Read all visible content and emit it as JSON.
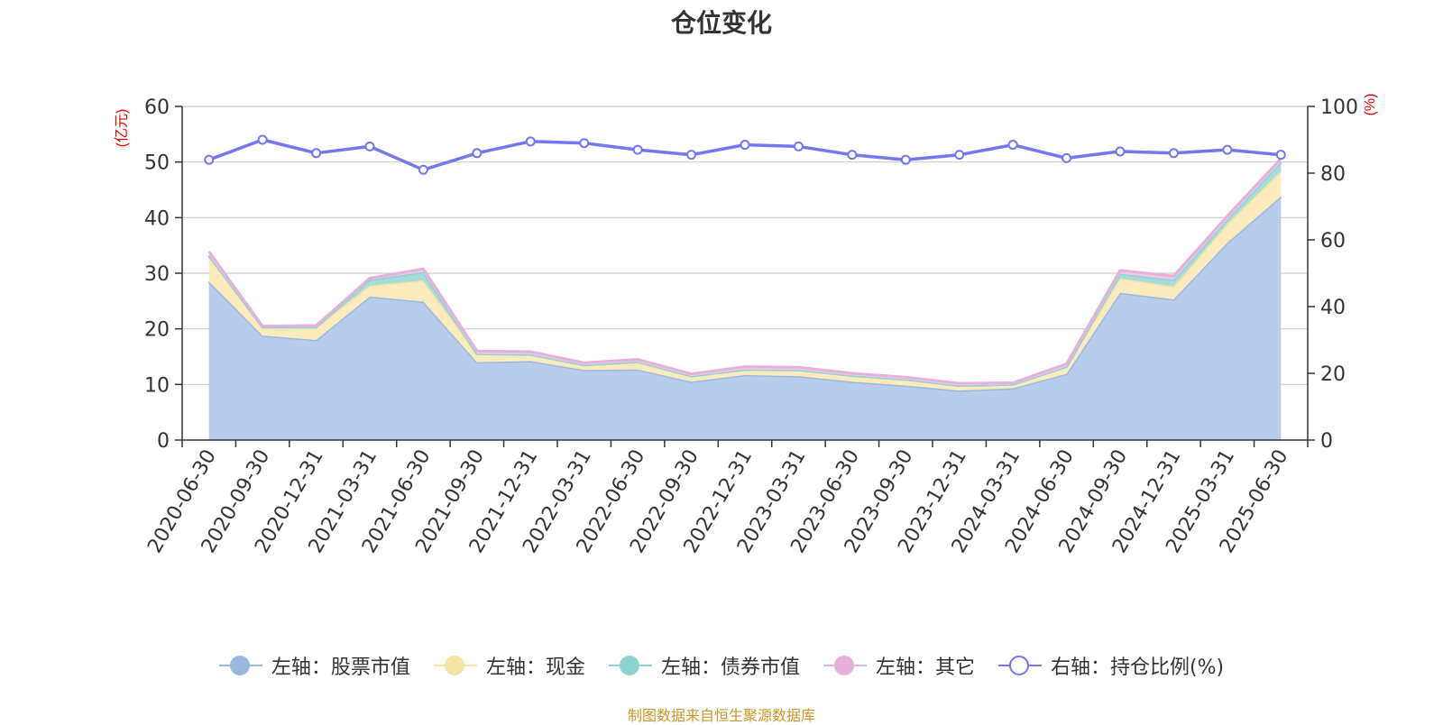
{
  "chart_data": {
    "type": "area",
    "title": "仓位变化",
    "left_axis_unit": "(亿元)",
    "right_axis_unit": "(%)",
    "x": [
      "2020-06-30",
      "2020-09-30",
      "2020-12-31",
      "2021-03-31",
      "2021-06-30",
      "2021-09-30",
      "2021-12-31",
      "2022-03-31",
      "2022-06-30",
      "2022-09-30",
      "2022-12-31",
      "2023-03-31",
      "2023-06-30",
      "2023-09-30",
      "2023-12-31",
      "2024-03-31",
      "2024-06-30",
      "2024-09-30",
      "2024-12-31",
      "2025-03-31",
      "2025-06-30"
    ],
    "left_ylim": [
      0,
      60
    ],
    "left_ticks": [
      "0",
      "10",
      "20",
      "30",
      "40",
      "50",
      "60"
    ],
    "right_ylim": [
      0,
      100
    ],
    "right_ticks": [
      "0",
      "20",
      "40",
      "60",
      "80",
      "100"
    ],
    "grid": true,
    "legend_position": "bottom",
    "series": [
      {
        "name": "左轴：股票市值",
        "axis": "left",
        "stacked": true,
        "color": "#9ab7e0",
        "fill": "#b8cdeb",
        "values": [
          28.5,
          18.8,
          18.0,
          25.8,
          24.9,
          14.0,
          14.2,
          12.6,
          12.7,
          10.5,
          11.7,
          11.5,
          10.5,
          9.8,
          8.9,
          9.3,
          11.9,
          26.5,
          25.3,
          35.5,
          43.8
        ]
      },
      {
        "name": "左轴：现金",
        "axis": "left",
        "stacked": true,
        "color": "#f6e3a6",
        "fill": "#fbebbd",
        "values": [
          4.5,
          1.5,
          2.3,
          2.0,
          3.8,
          1.5,
          1.2,
          0.9,
          1.2,
          1.0,
          1.0,
          1.1,
          1.1,
          1.1,
          0.9,
          0.7,
          1.3,
          2.6,
          2.3,
          3.4,
          4.6
        ]
      },
      {
        "name": "左轴：债券市值",
        "axis": "left",
        "stacked": true,
        "color": "#8fd3d1",
        "fill": "#a6dcdb",
        "values": [
          0.2,
          0.0,
          0.0,
          1.0,
          1.5,
          0.0,
          0.0,
          0.0,
          0.2,
          0.0,
          0.0,
          0.0,
          0.0,
          0.0,
          0.0,
          0.0,
          0.0,
          0.8,
          1.2,
          0.8,
          1.6
        ]
      },
      {
        "name": "左轴：其它",
        "axis": "left",
        "stacked": true,
        "color": "#e5b1da",
        "fill": "#efc9e6",
        "values": [
          0.7,
          0.2,
          0.3,
          0.3,
          0.6,
          0.5,
          0.5,
          0.4,
          0.4,
          0.4,
          0.5,
          0.5,
          0.4,
          0.4,
          0.4,
          0.3,
          0.5,
          0.6,
          0.7,
          0.6,
          0.6
        ]
      },
      {
        "name": "右轴：持仓比例(%)",
        "axis": "right",
        "type": "line",
        "color": "#7476f2",
        "values": [
          84,
          90,
          86,
          88,
          81,
          86,
          89.5,
          89,
          87,
          85.5,
          88.5,
          88,
          85.5,
          84,
          85.5,
          88.5,
          84.5,
          86.5,
          86,
          87,
          85.5
        ]
      }
    ],
    "source_note": "制图数据来自恒生聚源数据库"
  }
}
